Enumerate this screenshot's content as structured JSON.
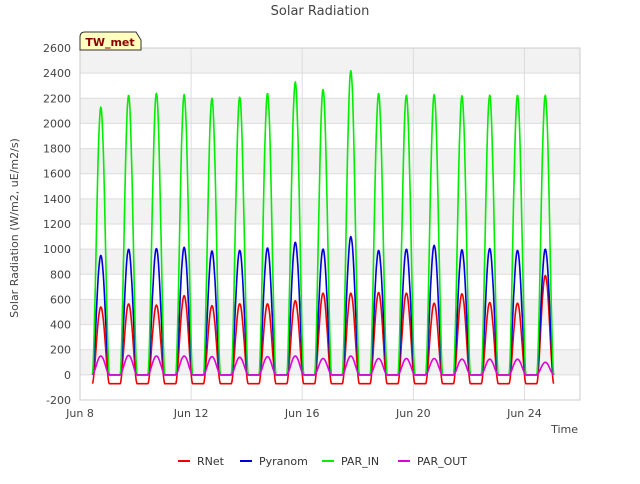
{
  "chart_data": {
    "type": "line",
    "title": "Solar Radiation",
    "xlabel": "Time",
    "ylabel": "Solar Radiation (W/m2, uE/m2/s)",
    "badge": "TW_met",
    "xlim": [
      0,
      18
    ],
    "ylim": [
      -200,
      2600
    ],
    "x_ticks": [
      {
        "label": "Jun 8",
        "value": 0
      },
      {
        "label": "Jun 12",
        "value": 4
      },
      {
        "label": "Jun 16",
        "value": 8
      },
      {
        "label": "Jun 20",
        "value": 12
      },
      {
        "label": "Jun 24",
        "value": 16
      }
    ],
    "y_ticks": [
      -200,
      0,
      200,
      400,
      600,
      800,
      1000,
      1200,
      1400,
      1600,
      1800,
      2000,
      2200,
      2400,
      2600
    ],
    "grid": true,
    "legend": "bottom",
    "day_centers": [
      0.75,
      1.75,
      2.75,
      3.75,
      4.75,
      5.75,
      6.75,
      7.75,
      8.75,
      9.75,
      10.75,
      11.75,
      12.75,
      13.75,
      14.75,
      15.75,
      16.75
    ],
    "series": [
      {
        "name": "RNet",
        "color": "#ee0000",
        "daily_peak": [
          540,
          565,
          555,
          630,
          550,
          565,
          565,
          590,
          650,
          650,
          655,
          650,
          570,
          645,
          575,
          570,
          790
        ],
        "night_value": -70
      },
      {
        "name": "Pyranom",
        "color": "#0000dd",
        "daily_peak": [
          950,
          1000,
          1005,
          1015,
          985,
          990,
          1010,
          1055,
          1000,
          1100,
          990,
          1000,
          1030,
          995,
          1005,
          990,
          1000
        ],
        "night_value": 0
      },
      {
        "name": "PAR_IN",
        "color": "#00ee00",
        "daily_peak": [
          2130,
          2225,
          2240,
          2230,
          2200,
          2210,
          2240,
          2330,
          2270,
          2420,
          2240,
          2225,
          2230,
          2220,
          2225,
          2225,
          2225
        ],
        "night_value": 0
      },
      {
        "name": "PAR_OUT",
        "color": "#dd00dd",
        "daily_peak": [
          150,
          155,
          150,
          150,
          145,
          140,
          145,
          150,
          130,
          150,
          130,
          130,
          130,
          125,
          125,
          125,
          100
        ],
        "night_value": 0
      }
    ]
  }
}
